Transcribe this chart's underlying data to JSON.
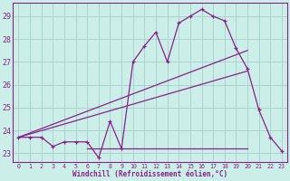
{
  "xlabel": "Windchill (Refroidissement éolien,°C)",
  "bg_color": "#cceee8",
  "grid_color": "#aad4ce",
  "line_color": "#882288",
  "spine_color": "#882288",
  "xlim": [
    -0.5,
    23.5
  ],
  "ylim": [
    22.6,
    29.6
  ],
  "yticks": [
    23,
    24,
    25,
    26,
    27,
    28,
    29
  ],
  "xticks": [
    0,
    1,
    2,
    3,
    4,
    5,
    6,
    7,
    8,
    9,
    10,
    11,
    12,
    13,
    14,
    15,
    16,
    17,
    18,
    19,
    20,
    21,
    22,
    23
  ],
  "curve_x": [
    0,
    1,
    2,
    3,
    4,
    5,
    6,
    7,
    8,
    9,
    10,
    11,
    12,
    13,
    14,
    15,
    16,
    17,
    18,
    19,
    20,
    21,
    22,
    23
  ],
  "curve_y": [
    23.7,
    23.7,
    23.7,
    23.3,
    23.5,
    23.5,
    23.5,
    22.8,
    24.4,
    23.2,
    27.0,
    27.7,
    28.3,
    27.0,
    28.7,
    29.0,
    29.3,
    29.0,
    28.8,
    27.6,
    26.7,
    24.9,
    23.7,
    23.1
  ],
  "line1_x": [
    0,
    20
  ],
  "line1_y": [
    23.7,
    27.5
  ],
  "line2_x": [
    0,
    20
  ],
  "line2_y": [
    23.7,
    26.6
  ],
  "line3_x": [
    6,
    20
  ],
  "line3_y": [
    23.2,
    23.2
  ]
}
